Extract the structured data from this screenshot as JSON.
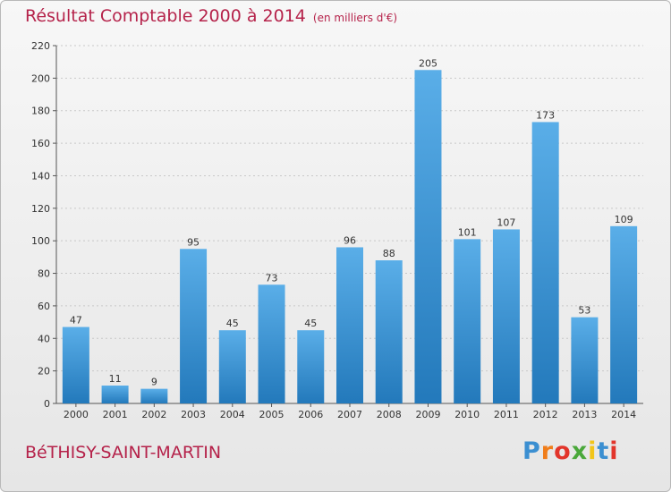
{
  "title": "Résultat Comptable 2000 à 2014",
  "subtitle": "(en milliers d'€)",
  "commune": "BéTHISY-SAINT-MARTIN",
  "logo": {
    "letters": [
      "P",
      "r",
      "o",
      "x",
      "i",
      "t",
      "i"
    ],
    "colors": [
      "#3b8fd1",
      "#f07d1a",
      "#e2352b",
      "#4aa83a",
      "#f2c51a",
      "#3b8fd1",
      "#e2352b"
    ]
  },
  "colors": {
    "bar_top": "#5aaee8",
    "bar_bottom": "#2379bb",
    "title": "#b5224a"
  },
  "chart_data": {
    "type": "bar",
    "categories": [
      "2000",
      "2001",
      "2002",
      "2003",
      "2004",
      "2005",
      "2006",
      "2007",
      "2008",
      "2009",
      "2010",
      "2011",
      "2012",
      "2013",
      "2014"
    ],
    "values": [
      47,
      11,
      9,
      95,
      45,
      73,
      45,
      96,
      88,
      205,
      101,
      107,
      173,
      53,
      109
    ],
    "ylim": [
      0,
      220
    ],
    "yticks": [
      0,
      20,
      40,
      60,
      80,
      100,
      120,
      140,
      160,
      180,
      200,
      220
    ],
    "grid": true
  }
}
